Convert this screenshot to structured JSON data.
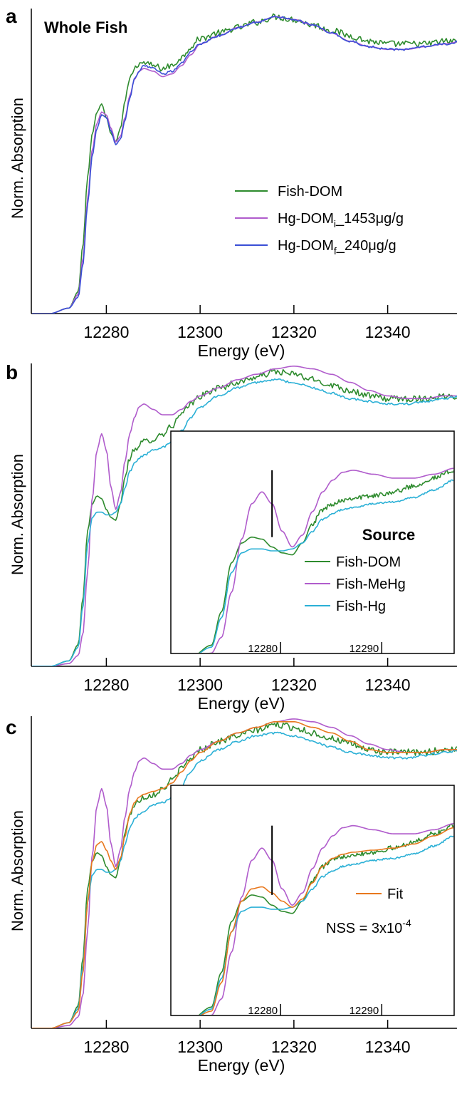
{
  "chart_data": [
    {
      "type": "line",
      "panel_label": "a",
      "annotation": "Whole Fish",
      "xlabel": "Energy (eV)",
      "ylabel": "Norm. Absorption",
      "xlim": [
        12264,
        12356
      ],
      "ylim": [
        0,
        1.12
      ],
      "xticks": [
        12280,
        12300,
        12320,
        12340
      ],
      "legend_position": "center-right",
      "series": [
        {
          "name": "Fish-DOM",
          "color": "#2e8b2e",
          "noise": 0.012,
          "x": [
            12264,
            12268,
            12272,
            12274,
            12275,
            12276,
            12277,
            12278,
            12279,
            12280,
            12281,
            12282,
            12283,
            12284,
            12285,
            12286,
            12287,
            12288,
            12290,
            12292,
            12294,
            12296,
            12298,
            12300,
            12304,
            12308,
            12312,
            12316,
            12320,
            12324,
            12328,
            12332,
            12336,
            12340,
            12344,
            12348,
            12352,
            12356
          ],
          "y": [
            0.0,
            0.0,
            0.02,
            0.08,
            0.25,
            0.5,
            0.66,
            0.74,
            0.77,
            0.72,
            0.66,
            0.63,
            0.68,
            0.78,
            0.86,
            0.9,
            0.92,
            0.92,
            0.91,
            0.9,
            0.91,
            0.94,
            0.98,
            1.01,
            1.03,
            1.05,
            1.07,
            1.09,
            1.08,
            1.06,
            1.04,
            1.02,
            1.0,
            0.99,
            0.99,
            0.99,
            1.0,
            1.0
          ]
        },
        {
          "name": "Hg-DOMi_1453μg/g",
          "color": "#b05ccc",
          "noise": 0.0,
          "x": [
            12264,
            12268,
            12272,
            12274,
            12275,
            12276,
            12277,
            12278,
            12279,
            12280,
            12281,
            12282,
            12283,
            12284,
            12285,
            12286,
            12287,
            12288,
            12290,
            12292,
            12294,
            12296,
            12298,
            12300,
            12304,
            12308,
            12312,
            12316,
            12320,
            12324,
            12328,
            12332,
            12336,
            12340,
            12344,
            12348,
            12352,
            12356
          ],
          "y": [
            0.0,
            0.0,
            0.02,
            0.07,
            0.2,
            0.42,
            0.6,
            0.7,
            0.74,
            0.73,
            0.68,
            0.63,
            0.65,
            0.72,
            0.8,
            0.86,
            0.89,
            0.9,
            0.89,
            0.87,
            0.88,
            0.91,
            0.95,
            0.99,
            1.02,
            1.05,
            1.07,
            1.09,
            1.08,
            1.06,
            1.03,
            1.0,
            0.98,
            0.97,
            0.97,
            0.98,
            0.99,
            1.0
          ]
        },
        {
          "name": "Hg-DOMf_240μg/g",
          "color": "#3a4fd6",
          "noise": 0.004,
          "x": [
            12264,
            12268,
            12272,
            12274,
            12275,
            12276,
            12277,
            12278,
            12279,
            12280,
            12281,
            12282,
            12283,
            12284,
            12285,
            12286,
            12287,
            12288,
            12290,
            12292,
            12294,
            12296,
            12298,
            12300,
            12304,
            12308,
            12312,
            12316,
            12320,
            12324,
            12328,
            12332,
            12336,
            12340,
            12344,
            12348,
            12352,
            12356
          ],
          "y": [
            0.0,
            0.0,
            0.02,
            0.06,
            0.18,
            0.4,
            0.58,
            0.68,
            0.73,
            0.72,
            0.67,
            0.62,
            0.64,
            0.71,
            0.79,
            0.86,
            0.89,
            0.91,
            0.9,
            0.88,
            0.89,
            0.92,
            0.96,
            0.99,
            1.02,
            1.05,
            1.07,
            1.09,
            1.08,
            1.06,
            1.03,
            1.0,
            0.98,
            0.97,
            0.97,
            0.98,
            0.99,
            1.0
          ]
        }
      ],
      "legend": [
        {
          "label": "Fish-DOM",
          "sub": "",
          "rest": "",
          "color": "#2e8b2e"
        },
        {
          "label": "Hg-DOM",
          "sub": "i",
          "rest": "_1453μg/g",
          "color": "#b05ccc"
        },
        {
          "label": "Hg-DOM",
          "sub": "f",
          "rest": "_240μg/g",
          "color": "#3a4fd6"
        }
      ]
    },
    {
      "type": "line",
      "panel_label": "b",
      "xlabel": "Energy (eV)",
      "ylabel": "Norm. Absorption",
      "xlim": [
        12264,
        12356
      ],
      "ylim": [
        0,
        1.12
      ],
      "xticks": [
        12280,
        12300,
        12320,
        12340
      ],
      "series": [
        {
          "name": "Fish-DOM",
          "color": "#2e8b2e",
          "noise": 0.012,
          "x": [
            12264,
            12268,
            12272,
            12274,
            12275,
            12276,
            12277,
            12278,
            12279,
            12280,
            12281,
            12282,
            12283,
            12284,
            12285,
            12286,
            12287,
            12288,
            12290,
            12292,
            12294,
            12296,
            12298,
            12300,
            12304,
            12308,
            12312,
            12316,
            12320,
            12324,
            12328,
            12332,
            12336,
            12340,
            12344,
            12348,
            12352,
            12356
          ],
          "y": [
            0.0,
            0.0,
            0.02,
            0.08,
            0.25,
            0.5,
            0.6,
            0.63,
            0.62,
            0.58,
            0.55,
            0.54,
            0.6,
            0.7,
            0.77,
            0.8,
            0.82,
            0.83,
            0.84,
            0.86,
            0.89,
            0.93,
            0.97,
            1.0,
            1.03,
            1.05,
            1.07,
            1.09,
            1.08,
            1.06,
            1.04,
            1.02,
            1.0,
            0.99,
            0.99,
            0.99,
            1.0,
            1.0
          ]
        },
        {
          "name": "Fish-MeHg",
          "color": "#b05ccc",
          "noise": 0.0,
          "x": [
            12264,
            12268,
            12272,
            12274,
            12275,
            12276,
            12277,
            12278,
            12279,
            12280,
            12281,
            12282,
            12283,
            12284,
            12285,
            12286,
            12287,
            12288,
            12290,
            12292,
            12294,
            12296,
            12298,
            12300,
            12304,
            12308,
            12312,
            12316,
            12320,
            12324,
            12328,
            12332,
            12336,
            12340,
            12344,
            12348,
            12352,
            12356
          ],
          "y": [
            0.0,
            0.0,
            0.01,
            0.04,
            0.12,
            0.35,
            0.62,
            0.8,
            0.86,
            0.8,
            0.66,
            0.58,
            0.64,
            0.76,
            0.86,
            0.92,
            0.96,
            0.97,
            0.95,
            0.93,
            0.93,
            0.95,
            0.98,
            1.0,
            1.03,
            1.06,
            1.08,
            1.1,
            1.11,
            1.1,
            1.08,
            1.05,
            1.02,
            1.0,
            0.99,
            0.99,
            1.0,
            1.0
          ]
        },
        {
          "name": "Fish-Hg",
          "color": "#2bb0d6",
          "noise": 0.004,
          "x": [
            12264,
            12268,
            12272,
            12274,
            12275,
            12276,
            12277,
            12278,
            12279,
            12280,
            12281,
            12282,
            12283,
            12284,
            12285,
            12286,
            12287,
            12288,
            12290,
            12292,
            12294,
            12296,
            12298,
            12300,
            12304,
            12308,
            12312,
            12316,
            12320,
            12324,
            12328,
            12332,
            12336,
            12340,
            12344,
            12348,
            12352,
            12356
          ],
          "y": [
            0.0,
            0.0,
            0.02,
            0.07,
            0.22,
            0.45,
            0.55,
            0.57,
            0.57,
            0.56,
            0.56,
            0.57,
            0.6,
            0.66,
            0.72,
            0.75,
            0.77,
            0.78,
            0.8,
            0.81,
            0.83,
            0.87,
            0.92,
            0.96,
            1.0,
            1.03,
            1.05,
            1.06,
            1.05,
            1.03,
            1.01,
            0.99,
            0.98,
            0.97,
            0.97,
            0.98,
            0.99,
            1.0
          ]
        }
      ],
      "inset": {
        "xlim": [
          12270,
          12298
        ],
        "xticks": [
          12280,
          12290
        ],
        "vline": 12280,
        "legend_title": "Source",
        "legend": [
          {
            "label": "Fish-DOM",
            "color": "#2e8b2e"
          },
          {
            "label": "Fish-MeHg",
            "color": "#b05ccc"
          },
          {
            "label": "Fish-Hg",
            "color": "#2bb0d6"
          }
        ]
      }
    },
    {
      "type": "line",
      "panel_label": "c",
      "xlabel": "Energy (eV)",
      "ylabel": "Norm. Absorption",
      "xlim": [
        12264,
        12356
      ],
      "ylim": [
        0,
        1.12
      ],
      "xticks": [
        12280,
        12300,
        12320,
        12340
      ],
      "series": [
        {
          "name": "Fish-DOM",
          "color": "#2e8b2e",
          "noise": 0.012,
          "x": [
            12264,
            12268,
            12272,
            12274,
            12275,
            12276,
            12277,
            12278,
            12279,
            12280,
            12281,
            12282,
            12283,
            12284,
            12285,
            12286,
            12287,
            12288,
            12290,
            12292,
            12294,
            12296,
            12298,
            12300,
            12304,
            12308,
            12312,
            12316,
            12320,
            12324,
            12328,
            12332,
            12336,
            12340,
            12344,
            12348,
            12352,
            12356
          ],
          "y": [
            0.0,
            0.0,
            0.02,
            0.08,
            0.25,
            0.5,
            0.6,
            0.63,
            0.62,
            0.58,
            0.55,
            0.54,
            0.6,
            0.7,
            0.77,
            0.8,
            0.82,
            0.83,
            0.84,
            0.86,
            0.89,
            0.93,
            0.97,
            1.0,
            1.03,
            1.05,
            1.07,
            1.09,
            1.08,
            1.06,
            1.04,
            1.02,
            1.0,
            0.99,
            0.99,
            0.99,
            1.0,
            1.0
          ]
        },
        {
          "name": "Fish-MeHg",
          "color": "#b05ccc",
          "noise": 0.0,
          "x": [
            12264,
            12268,
            12272,
            12274,
            12275,
            12276,
            12277,
            12278,
            12279,
            12280,
            12281,
            12282,
            12283,
            12284,
            12285,
            12286,
            12287,
            12288,
            12290,
            12292,
            12294,
            12296,
            12298,
            12300,
            12304,
            12308,
            12312,
            12316,
            12320,
            12324,
            12328,
            12332,
            12336,
            12340,
            12344,
            12348,
            12352,
            12356
          ],
          "y": [
            0.0,
            0.0,
            0.01,
            0.04,
            0.12,
            0.35,
            0.62,
            0.8,
            0.86,
            0.8,
            0.66,
            0.58,
            0.64,
            0.76,
            0.86,
            0.92,
            0.96,
            0.97,
            0.95,
            0.93,
            0.93,
            0.95,
            0.98,
            1.0,
            1.03,
            1.06,
            1.08,
            1.1,
            1.11,
            1.1,
            1.08,
            1.05,
            1.02,
            1.0,
            0.99,
            0.99,
            1.0,
            1.0
          ]
        },
        {
          "name": "Fish-Hg",
          "color": "#2bb0d6",
          "noise": 0.004,
          "x": [
            12264,
            12268,
            12272,
            12274,
            12275,
            12276,
            12277,
            12278,
            12279,
            12280,
            12281,
            12282,
            12283,
            12284,
            12285,
            12286,
            12287,
            12288,
            12290,
            12292,
            12294,
            12296,
            12298,
            12300,
            12304,
            12308,
            12312,
            12316,
            12320,
            12324,
            12328,
            12332,
            12336,
            12340,
            12344,
            12348,
            12352,
            12356
          ],
          "y": [
            0.0,
            0.0,
            0.02,
            0.07,
            0.22,
            0.45,
            0.55,
            0.57,
            0.57,
            0.56,
            0.56,
            0.57,
            0.6,
            0.66,
            0.72,
            0.75,
            0.77,
            0.78,
            0.8,
            0.81,
            0.83,
            0.87,
            0.92,
            0.96,
            1.0,
            1.03,
            1.05,
            1.06,
            1.05,
            1.03,
            1.01,
            0.99,
            0.98,
            0.97,
            0.97,
            0.98,
            0.99,
            1.0
          ]
        },
        {
          "name": "Fit",
          "color": "#e8781e",
          "noise": 0.0,
          "x": [
            12264,
            12268,
            12272,
            12274,
            12275,
            12276,
            12277,
            12278,
            12279,
            12280,
            12281,
            12282,
            12283,
            12284,
            12285,
            12286,
            12287,
            12288,
            12290,
            12292,
            12294,
            12296,
            12298,
            12300,
            12304,
            12308,
            12312,
            12316,
            12320,
            12324,
            12328,
            12332,
            12336,
            12340,
            12344,
            12348,
            12352,
            12356
          ],
          "y": [
            0.0,
            0.0,
            0.02,
            0.06,
            0.2,
            0.45,
            0.6,
            0.66,
            0.67,
            0.64,
            0.6,
            0.57,
            0.61,
            0.69,
            0.77,
            0.81,
            0.83,
            0.84,
            0.85,
            0.86,
            0.88,
            0.92,
            0.96,
            0.99,
            1.03,
            1.06,
            1.08,
            1.1,
            1.1,
            1.08,
            1.06,
            1.03,
            1.0,
            0.99,
            0.99,
            0.99,
            1.0,
            1.0
          ]
        }
      ],
      "inset": {
        "xlim": [
          12270,
          12298
        ],
        "xticks": [
          12280,
          12290
        ],
        "vline": 12280,
        "legend_title": "",
        "legend": [
          {
            "label": "Fit",
            "color": "#e8781e"
          }
        ],
        "nss": {
          "base": "NSS = 3x10",
          "exp": "-4"
        }
      }
    }
  ]
}
